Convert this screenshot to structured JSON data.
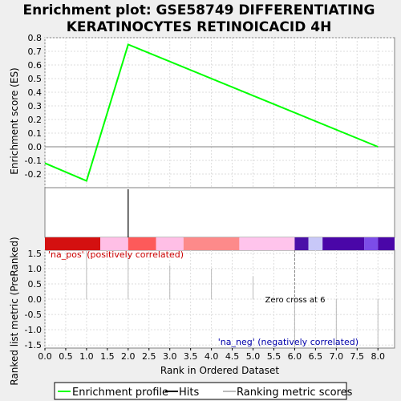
{
  "chart_data": {
    "type": "line",
    "title_line1": "Enrichment plot: GSE58749 DIFFERENTIATING",
    "title_line2": "KERATINOCYTES RETINOICACID 4H",
    "es_panel": {
      "ylabel": "Enrichment score (ES)",
      "ylim": [
        -0.3,
        0.8
      ],
      "yticks": [
        -0.2,
        -0.1,
        0.0,
        0.1,
        0.2,
        0.3,
        0.4,
        0.5,
        0.6,
        0.7,
        0.8
      ],
      "series": [
        {
          "name": "Enrichment profile",
          "color": "#00ff00",
          "x": [
            0.0,
            1.0,
            2.0,
            8.0
          ],
          "y": [
            -0.12,
            -0.25,
            0.75,
            0.0
          ]
        }
      ]
    },
    "hits_panel": {
      "hits": [
        2.0
      ]
    },
    "color_bar": {
      "segments": [
        {
          "from": 0.0,
          "to": 1.33,
          "color": "#d41010"
        },
        {
          "from": 1.33,
          "to": 2.0,
          "color": "#ffbfe6"
        },
        {
          "from": 2.0,
          "to": 2.67,
          "color": "#fd5a5a"
        },
        {
          "from": 2.67,
          "to": 3.33,
          "color": "#ffbfe6"
        },
        {
          "from": 3.33,
          "to": 4.67,
          "color": "#fd8a8a"
        },
        {
          "from": 4.67,
          "to": 6.0,
          "color": "#ffc4ec"
        },
        {
          "from": 6.0,
          "to": 6.33,
          "color": "#4a10a8"
        },
        {
          "from": 6.33,
          "to": 6.67,
          "color": "#c8c8f8"
        },
        {
          "from": 6.67,
          "to": 7.67,
          "color": "#4a06a8"
        },
        {
          "from": 7.67,
          "to": 8.0,
          "color": "#7c4de8"
        },
        {
          "from": 8.0,
          "to": 8.4,
          "color": "#4a06a8"
        }
      ]
    },
    "metric_panel": {
      "ylabel": "Ranked list metric (PreRanked)",
      "ylim": [
        -1.6,
        1.6
      ],
      "yticks": [
        -1.5,
        -1.0,
        -0.5,
        0.0,
        0.5,
        1.0,
        1.5
      ],
      "bars_x": [
        1.0,
        2.0,
        3.0,
        4.0,
        5.0,
        6.0,
        7.0,
        8.0
      ],
      "bars_y": [
        1.6,
        1.5,
        1.1,
        1.0,
        0.75,
        -1.6,
        -1.6,
        -1.6
      ],
      "pos_label": "'na_pos' (positively correlated)",
      "neg_label": "'na_neg' (negatively correlated)",
      "zero_cross_label": "Zero cross at 6",
      "zero_cross_x": 6.0
    },
    "xaxis": {
      "xlabel": "Rank in Ordered Dataset",
      "xlim": [
        0.0,
        8.4
      ],
      "xticks": [
        0.0,
        0.5,
        1.0,
        1.5,
        2.0,
        2.5,
        3.0,
        3.5,
        4.0,
        4.5,
        5.0,
        5.5,
        6.0,
        6.5,
        7.0,
        7.5,
        8.0
      ]
    },
    "legend": {
      "placement": "bottom",
      "entries": [
        {
          "label": "Enrichment profile",
          "color": "#00ff00"
        },
        {
          "label": "Hits",
          "color": "#000000"
        },
        {
          "label": "Ranking metric scores",
          "color": "#bbbbbb"
        }
      ]
    }
  }
}
